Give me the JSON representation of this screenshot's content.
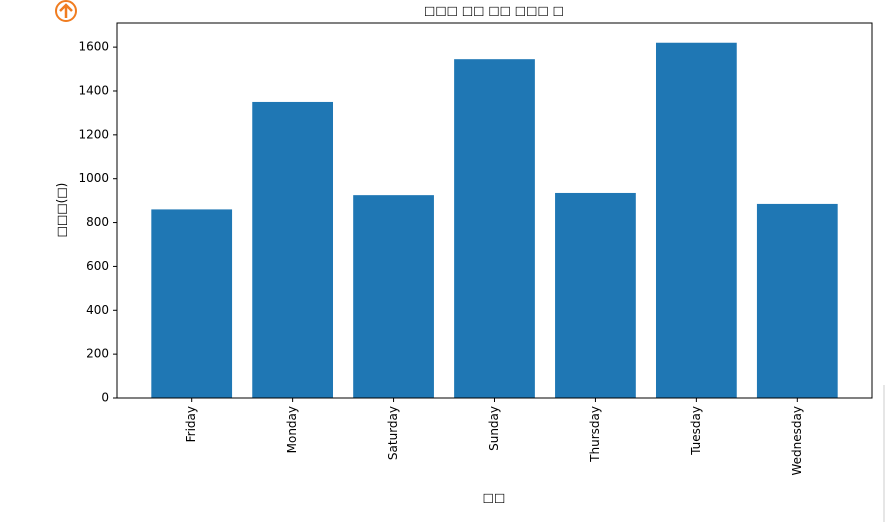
{
  "chart_data": {
    "type": "bar",
    "title": "□□□ □□ □□ □□□ □",
    "x_label": "□□",
    "y_label": "□□□(□)",
    "categories": [
      "Friday",
      "Monday",
      "Saturday",
      "Sunday",
      "Thursday",
      "Tuesday",
      "Wednesday"
    ],
    "values": [
      860,
      1350,
      925,
      1545,
      935,
      1620,
      885
    ],
    "color": "#1f77b4",
    "ylim": [
      0,
      1710
    ],
    "yticks": [
      0,
      200,
      400,
      600,
      800,
      1000,
      1200,
      1400,
      1600
    ],
    "grid": false
  }
}
